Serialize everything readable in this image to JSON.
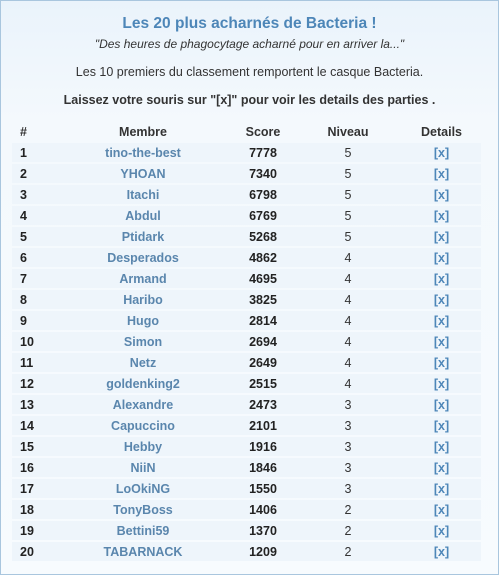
{
  "header": {
    "title": "Les 20 plus acharnés de Bacteria !",
    "subtitle": "\"Des heures de phagocytage acharné pour en arriver la...\"",
    "info": "Les 10 premiers du classement remportent le casque Bacteria.",
    "instruction": "Laissez votre souris sur \"[x]\" pour voir les details des parties ."
  },
  "table": {
    "columns": [
      "#",
      "Membre",
      "Score",
      "Niveau",
      "Details"
    ],
    "rows": [
      {
        "rank": "1",
        "member": "tino-the-best",
        "score": "7778",
        "level": "5",
        "details": "[x]"
      },
      {
        "rank": "2",
        "member": "YHOAN",
        "score": "7340",
        "level": "5",
        "details": "[x]"
      },
      {
        "rank": "3",
        "member": "Itachi",
        "score": "6798",
        "level": "5",
        "details": "[x]"
      },
      {
        "rank": "4",
        "member": "Abdul",
        "score": "6769",
        "level": "5",
        "details": "[x]"
      },
      {
        "rank": "5",
        "member": "Ptidark",
        "score": "5268",
        "level": "5",
        "details": "[x]"
      },
      {
        "rank": "6",
        "member": "Desperados",
        "score": "4862",
        "level": "4",
        "details": "[x]"
      },
      {
        "rank": "7",
        "member": "Armand",
        "score": "4695",
        "level": "4",
        "details": "[x]"
      },
      {
        "rank": "8",
        "member": "Haribo",
        "score": "3825",
        "level": "4",
        "details": "[x]"
      },
      {
        "rank": "9",
        "member": "Hugo",
        "score": "2814",
        "level": "4",
        "details": "[x]"
      },
      {
        "rank": "10",
        "member": "Simon",
        "score": "2694",
        "level": "4",
        "details": "[x]"
      },
      {
        "rank": "11",
        "member": "Netz",
        "score": "2649",
        "level": "4",
        "details": "[x]"
      },
      {
        "rank": "12",
        "member": "goldenking2",
        "score": "2515",
        "level": "4",
        "details": "[x]"
      },
      {
        "rank": "13",
        "member": "Alexandre",
        "score": "2473",
        "level": "3",
        "details": "[x]"
      },
      {
        "rank": "14",
        "member": "Capuccino",
        "score": "2101",
        "level": "3",
        "details": "[x]"
      },
      {
        "rank": "15",
        "member": "Hebby",
        "score": "1916",
        "level": "3",
        "details": "[x]"
      },
      {
        "rank": "16",
        "member": "NiiN",
        "score": "1846",
        "level": "3",
        "details": "[x]"
      },
      {
        "rank": "17",
        "member": "LoOkiNG",
        "score": "1550",
        "level": "3",
        "details": "[x]"
      },
      {
        "rank": "18",
        "member": "TonyBoss",
        "score": "1406",
        "level": "2",
        "details": "[x]"
      },
      {
        "rank": "19",
        "member": "Bettini59",
        "score": "1370",
        "level": "2",
        "details": "[x]"
      },
      {
        "rank": "20",
        "member": "TABARNACK",
        "score": "1209",
        "level": "2",
        "details": "[x]"
      }
    ]
  },
  "colors": {
    "title": "#4d86b8",
    "member_link": "#5a86ad",
    "row_background": "#eef5fb",
    "panel_border": "#a9c6de"
  }
}
